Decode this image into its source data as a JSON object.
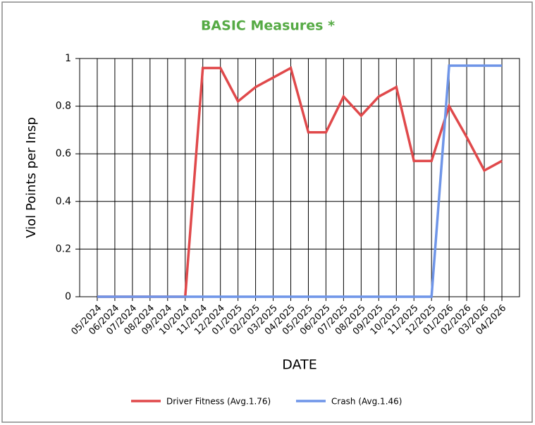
{
  "chart_data": {
    "type": "line",
    "title": "BASIC Measures *",
    "x_label": "DATE",
    "y_label": "Viol Points per Insp",
    "categories": [
      "05/2024",
      "06/2024",
      "07/2024",
      "08/2024",
      "09/2024",
      "10/2024",
      "11/2024",
      "12/2024",
      "01/2025",
      "02/2025",
      "03/2025",
      "04/2025",
      "05/2025",
      "06/2025",
      "07/2025",
      "08/2025",
      "09/2025",
      "10/2025",
      "11/2025",
      "12/2025",
      "01/2026",
      "02/2026",
      "03/2026",
      "04/2026"
    ],
    "series": [
      {
        "name": "Driver Fitness (Avg.1.76)",
        "color": "#e0494b",
        "values": [
          0,
          0,
          0,
          0,
          0,
          0,
          0.96,
          0.96,
          0.82,
          0.88,
          0.92,
          0.96,
          0.69,
          0.69,
          0.84,
          0.76,
          0.84,
          0.88,
          0.57,
          0.57,
          0.8,
          0.67,
          0.53,
          0.57
        ]
      },
      {
        "name": "Crash (Avg.1.46)",
        "color": "#6f95e8",
        "values": [
          0,
          0,
          0,
          0,
          0,
          0,
          0,
          0,
          0,
          0,
          0,
          0,
          0,
          0,
          0,
          0,
          0,
          0,
          0,
          0,
          0.97,
          0.97,
          0.97,
          0.97
        ]
      }
    ],
    "ylim": [
      0,
      1
    ],
    "yticks": [
      0,
      0.2,
      0.4,
      0.6,
      0.8,
      1
    ],
    "grid": true,
    "legend": "bottom"
  }
}
